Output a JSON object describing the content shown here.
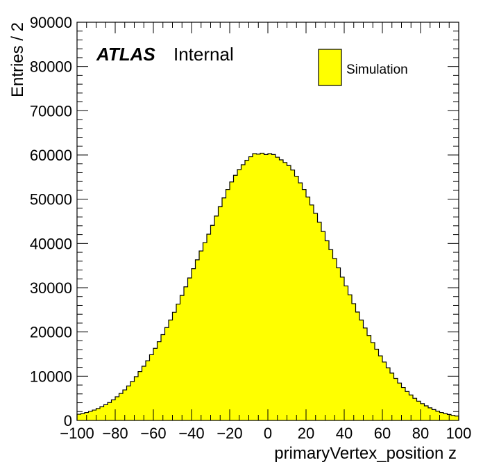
{
  "chart_data": {
    "type": "bar",
    "style": "step-histogram",
    "xlabel": "primaryVertex_position z",
    "ylabel": "Entries / 2",
    "xlim": [
      -100,
      100
    ],
    "ylim": [
      0,
      90000
    ],
    "bin_width": 2,
    "x_ticks": [
      "−100",
      "−80",
      "−60",
      "−40",
      "−20",
      "0",
      "20",
      "40",
      "60",
      "80",
      "100"
    ],
    "y_ticks": [
      "0",
      "10000",
      "20000",
      "30000",
      "40000",
      "50000",
      "60000",
      "70000",
      "80000",
      "90000"
    ],
    "experiment_label": "ATLAS",
    "status_label": "Internal",
    "legend_position": "top-right",
    "fill_color": "#ffff00",
    "line_color": "#000000",
    "series": [
      {
        "name": "Simulation",
        "values": [
          1400,
          1550,
          1800,
          2050,
          2350,
          2700,
          3100,
          3550,
          4050,
          4650,
          5350,
          6100,
          6900,
          7800,
          8800,
          9900,
          11050,
          12250,
          13500,
          14850,
          16300,
          17800,
          19400,
          21000,
          22700,
          24450,
          26300,
          28250,
          30200,
          32200,
          34300,
          36300,
          38300,
          40200,
          42100,
          44100,
          46200,
          48300,
          50300,
          52200,
          53900,
          55400,
          56700,
          57800,
          58800,
          59600,
          60300,
          60200,
          60400,
          60100,
          60300,
          60100,
          59500,
          58900,
          58300,
          57600,
          56600,
          55200,
          53700,
          52200,
          50500,
          48700,
          46800,
          44800,
          42700,
          40600,
          38600,
          36600,
          34500,
          32400,
          30400,
          28400,
          26400,
          24500,
          22700,
          20900,
          19200,
          17600,
          16100,
          14600,
          13200,
          11900,
          10700,
          9500,
          8450,
          7450,
          6550,
          5750,
          5000,
          4350,
          3800,
          3300,
          2850,
          2450,
          2100,
          1800,
          1550,
          1350,
          1150,
          1000
        ]
      }
    ]
  }
}
